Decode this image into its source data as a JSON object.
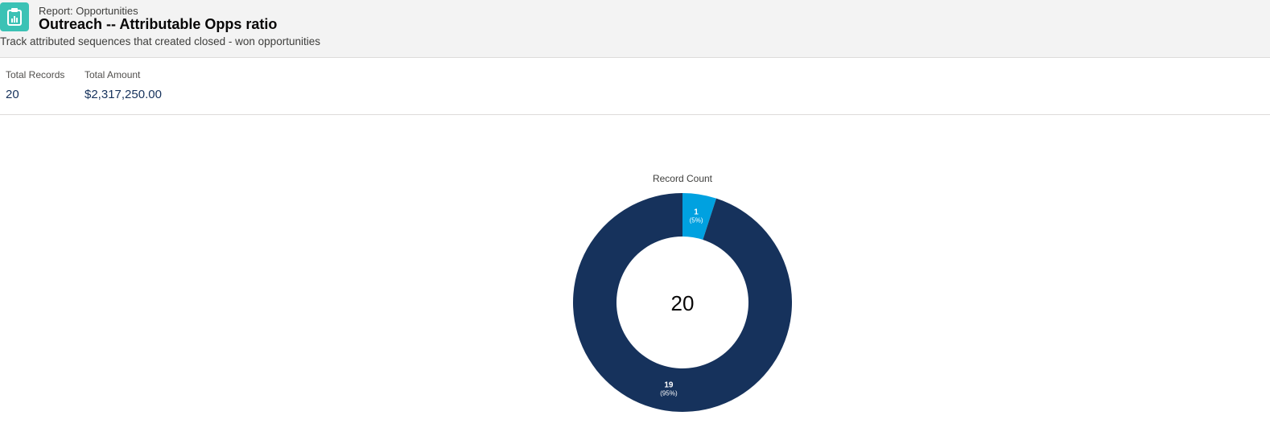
{
  "header": {
    "breadcrumb": "Report: Opportunities",
    "title": "Outreach -- Attributable Opps ratio",
    "description": "Track attributed sequences that created closed - won opportunities",
    "icon": "report-icon"
  },
  "summary": {
    "total_records_label": "Total Records",
    "total_records_value": "20",
    "total_amount_label": "Total Amount",
    "total_amount_value": "$2,317,250.00"
  },
  "colors": {
    "accent": "#3bc2b5",
    "slice_dark": "#16325c",
    "slice_light": "#00a1e0"
  },
  "chart_data": {
    "type": "pie",
    "variant": "donut",
    "title": "Record Count",
    "center_label": "20",
    "slices": [
      {
        "value": 1,
        "percent": "5%",
        "label": "1",
        "sublabel": "(5%)",
        "color": "#00a1e0"
      },
      {
        "value": 19,
        "percent": "95%",
        "label": "19",
        "sublabel": "(95%)",
        "color": "#16325c"
      }
    ]
  }
}
